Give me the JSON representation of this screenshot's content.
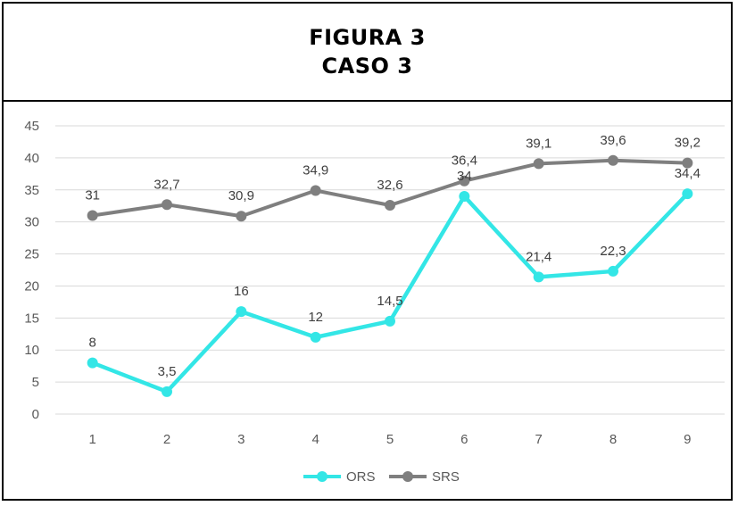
{
  "header": {
    "title_line1": "FIGURA 3",
    "title_line2": "CASO 3"
  },
  "chart_data": {
    "type": "line",
    "categories": [
      "1",
      "2",
      "3",
      "4",
      "5",
      "6",
      "7",
      "8",
      "9"
    ],
    "ylim": [
      0,
      45
    ],
    "yticks": [
      0,
      5,
      10,
      15,
      20,
      25,
      30,
      35,
      40,
      45
    ],
    "ytick_labels": [
      "0",
      "5",
      "10",
      "15",
      "20",
      "25",
      "30",
      "35",
      "40",
      "45"
    ],
    "grid": true,
    "legend_position": "bottom",
    "series": [
      {
        "name": "ORS",
        "color": "#33E6E6",
        "values": [
          8,
          3.5,
          16,
          12,
          14.5,
          34,
          21.4,
          22.3,
          34.4
        ],
        "labels": [
          "8",
          "3,5",
          "16",
          "12",
          "14,5",
          "34",
          "21,4",
          "22,3",
          "34,4"
        ]
      },
      {
        "name": "SRS",
        "color": "#7F7F7F",
        "values": [
          31,
          32.7,
          30.9,
          34.9,
          32.6,
          36.4,
          39.1,
          39.6,
          39.2
        ],
        "labels": [
          "31",
          "32,7",
          "30,9",
          "34,9",
          "32,6",
          "36,4",
          "39,1",
          "39,6",
          "39,2"
        ]
      }
    ]
  }
}
